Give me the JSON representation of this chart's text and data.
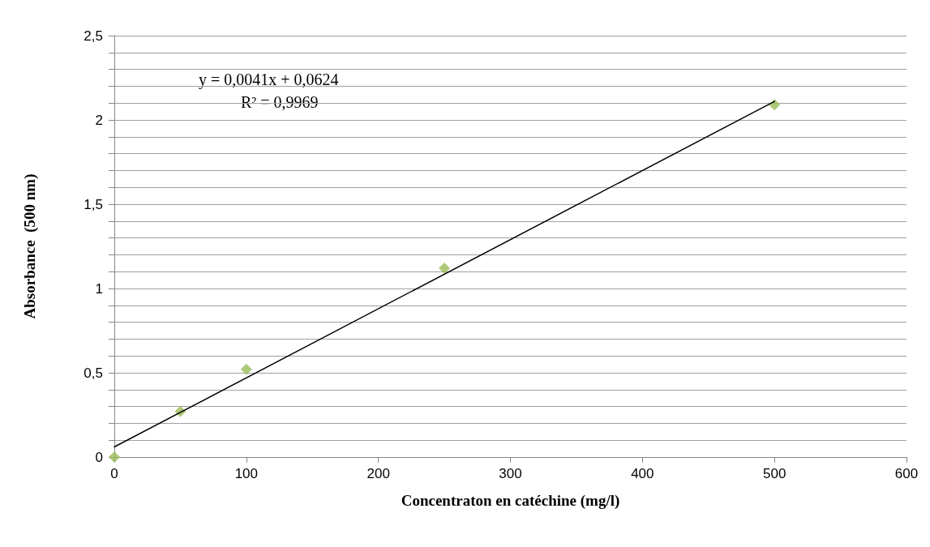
{
  "chart_data": {
    "type": "scatter",
    "xlabel": "Concentraton en catéchine (mg/l)",
    "ylabel": "Absorbance  (500 nm)",
    "series": [
      {
        "color": "#9bbb59",
        "marker": "diamond",
        "x": [
          0,
          50,
          100,
          250,
          500
        ],
        "values": [
          0,
          0.27,
          0.52,
          1.12,
          2.09
        ]
      },
      {
        "type": "line",
        "color": "#000000",
        "marker": "none",
        "line_style": "solid",
        "x": [
          0,
          500
        ],
        "values": [
          0.06,
          2.11
        ]
      }
    ],
    "xlim": [
      0,
      600
    ],
    "xticks": [
      0,
      100,
      200,
      300,
      400,
      500,
      600
    ],
    "ylim": [
      0,
      2.5
    ],
    "yticks": [
      {
        "value": 0,
        "label": "0"
      },
      {
        "value": 0.1,
        "label": null
      },
      {
        "value": 0.2,
        "label": null
      },
      {
        "value": 0.3,
        "label": null
      },
      {
        "value": 0.4,
        "label": null
      },
      {
        "value": 0.5,
        "label": "0,5"
      },
      {
        "value": 0.6,
        "label": null
      },
      {
        "value": 0.7,
        "label": null
      },
      {
        "value": 0.8,
        "label": null
      },
      {
        "value": 0.9,
        "label": null
      },
      {
        "value": 1,
        "label": "1"
      },
      {
        "value": 1.1,
        "label": null
      },
      {
        "value": 1.2,
        "label": null
      },
      {
        "value": 1.3,
        "label": null
      },
      {
        "value": 1.4,
        "label": null
      },
      {
        "value": 1.5,
        "label": "1,5"
      },
      {
        "value": 1.6,
        "label": null
      },
      {
        "value": 1.7,
        "label": null
      },
      {
        "value": 1.8,
        "label": null
      },
      {
        "value": 1.9,
        "label": null
      },
      {
        "value": 2,
        "label": "2"
      },
      {
        "value": 2.1,
        "label": null
      },
      {
        "value": 2.2,
        "label": null
      },
      {
        "value": 2.3,
        "label": null
      },
      {
        "value": 2.4,
        "label": null
      },
      {
        "value": 2.5,
        "label": "2,5"
      }
    ],
    "grid": "y",
    "annotations": [
      "y = 0,0041x + 0,0624",
      "R² = 0,9969"
    ]
  }
}
